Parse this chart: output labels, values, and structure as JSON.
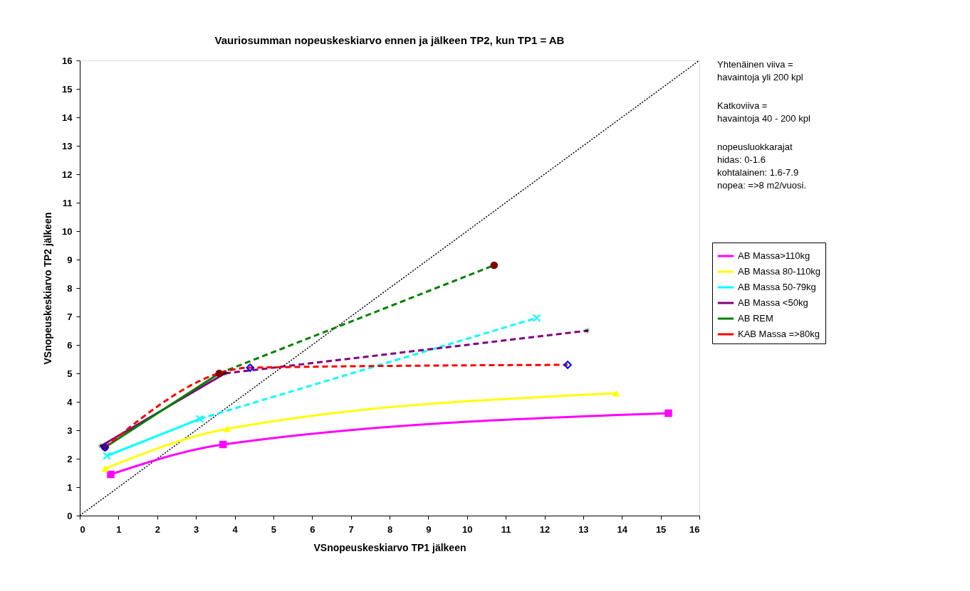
{
  "chart_data": {
    "type": "line",
    "title": "Vauriosumman nopeuskeskiarvo ennen ja jälkeen TP2, kun TP1 = AB",
    "xlabel": "VSnopeuskeskiarvo TP1 jälkeen",
    "ylabel": "VSnopeuskeskiarvo TP2 jälkeen",
    "xlim": [
      0,
      16
    ],
    "ylim": [
      0,
      16
    ],
    "xticks": [
      0,
      1,
      2,
      3,
      4,
      5,
      6,
      7,
      8,
      9,
      10,
      11,
      12,
      13,
      14,
      15,
      16
    ],
    "yticks": [
      0,
      1,
      2,
      3,
      4,
      5,
      6,
      7,
      8,
      9,
      10,
      11,
      12,
      13,
      14,
      15,
      16
    ],
    "grid": false,
    "legend": "right",
    "annotations": [
      "Yhtenäinen viiva =\nhavaintoja yli 200 kpl",
      "Katkoviiva =\nhavaintoja 40 - 200 kpl",
      "nopeusluokkarajat\nhidas: 0-1.6\nkohtalainen: 1.6-7.9\nnopea: =>8 m2/vuosi."
    ],
    "series": [
      {
        "color": "#000000",
        "line_style": "dotted",
        "marker": "none",
        "x": [
          0,
          16
        ],
        "values": [
          0,
          16
        ]
      },
      {
        "name": "AB Massa>110kg",
        "color": "#ff00ff",
        "marker": "none",
        "line_style": "solid",
        "x": [
          0.8,
          3.7,
          15.2
        ],
        "values": [
          1.45,
          2.5,
          3.6
        ]
      },
      {
        "name": "AB Massa 80-110kg",
        "color": "#ffff00",
        "marker": "none",
        "line_style": "solid",
        "x": [
          0.65,
          3.8,
          13.85
        ],
        "values": [
          1.65,
          3.05,
          4.3
        ]
      },
      {
        "name": "AB Massa 50-79kg",
        "color": "#00ffff",
        "marker": "none",
        "line_style": "solid",
        "x": [
          0.7,
          3.1
        ],
        "values": [
          2.1,
          3.4
        ]
      },
      {
        "color": "#00ffff",
        "marker": "none",
        "line_style": "dashed",
        "x": [
          3.1,
          11.8
        ],
        "values": [
          3.4,
          6.95
        ]
      },
      {
        "name": "AB Massa <50kg",
        "color": "#800080",
        "marker": "none",
        "line_style": "solid",
        "x": [
          0.55,
          3.75
        ],
        "values": [
          2.45,
          5.0
        ]
      },
      {
        "color": "#800080",
        "marker": "none",
        "line_style": "dashed",
        "x": [
          3.75,
          13.1
        ],
        "values": [
          5.0,
          6.5
        ]
      },
      {
        "name": "AB REM",
        "color": "#008000",
        "marker": "none",
        "line_style": "solid",
        "x": [
          0.65,
          3.6
        ],
        "values": [
          2.4,
          5.0
        ]
      },
      {
        "color": "#008000",
        "marker": "none",
        "line_style": "dashed",
        "x": [
          3.6,
          10.7
        ],
        "values": [
          5.0,
          8.8
        ]
      },
      {
        "name": "KAB Massa =>80kg",
        "color": "#ff0000",
        "marker": "none",
        "line_style": "dashed",
        "x": [
          0.65,
          4.4,
          12.6
        ],
        "values": [
          2.4,
          5.2,
          5.3
        ]
      },
      {
        "type": "scatter",
        "color": "#ff00ff",
        "marker": "square",
        "x": [
          0.8,
          3.7,
          15.2
        ],
        "values": [
          1.45,
          2.5,
          3.6
        ]
      },
      {
        "type": "scatter",
        "color": "#ffff00",
        "marker": "triangle",
        "x": [
          0.65,
          3.8,
          13.85
        ],
        "values": [
          1.65,
          3.05,
          4.3
        ]
      },
      {
        "type": "scatter",
        "color": "#00ffff",
        "marker": "cross",
        "x": [
          0.7,
          3.1,
          11.8
        ],
        "values": [
          2.1,
          3.4,
          6.95
        ]
      },
      {
        "type": "scatter",
        "color": "#000000",
        "marker": "star",
        "x": [
          0.55,
          3.75,
          13.1
        ],
        "values": [
          2.45,
          5.0,
          6.5
        ]
      },
      {
        "type": "scatter",
        "color": "#800000",
        "marker": "circle",
        "x": [
          0.65,
          3.6,
          10.7
        ],
        "values": [
          2.4,
          5.0,
          8.8
        ]
      },
      {
        "type": "scatter",
        "color": "#0000ff",
        "marker": "diamond",
        "x": [
          0.65,
          4.4,
          12.6
        ],
        "values": [
          2.4,
          5.2,
          5.3
        ]
      }
    ]
  }
}
